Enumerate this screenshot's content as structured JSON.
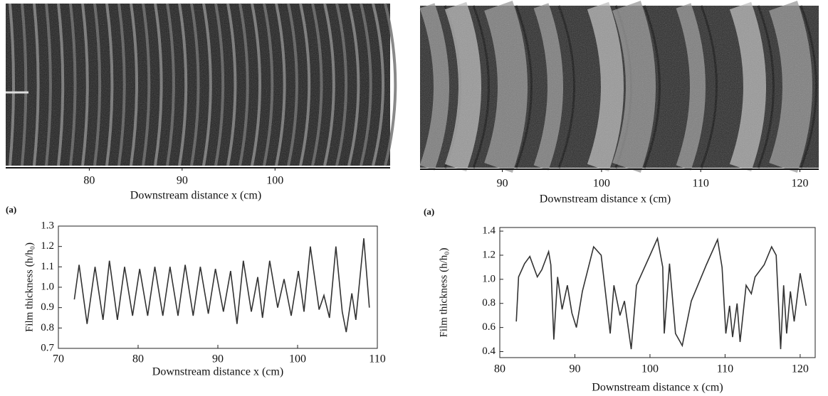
{
  "chart_data": [
    {
      "type": "line",
      "xlabel": "Downstream distance  x (cm)",
      "ylabel": "Film thickness (h/h₀)",
      "xlim": [
        70,
        110
      ],
      "xticks": [
        70,
        80,
        90,
        100,
        110
      ],
      "ylim": [
        0.7,
        1.3
      ],
      "yticks": [
        0.7,
        0.8,
        0.9,
        {
          "value": 1.0,
          "label": "1.0"
        },
        1.1,
        1.2,
        1.3
      ],
      "color": "#333333",
      "x": [
        72.0,
        72.6,
        73.6,
        74.6,
        75.6,
        76.4,
        77.4,
        78.3,
        79.3,
        80.2,
        81.2,
        82.1,
        83.1,
        84.0,
        85.0,
        85.9,
        86.9,
        87.8,
        88.8,
        89.7,
        90.7,
        91.6,
        92.4,
        93.2,
        94.2,
        95.0,
        95.6,
        96.5,
        97.5,
        98.3,
        99.2,
        100.1,
        100.8,
        101.6,
        102.7,
        103.3,
        104.0,
        104.8,
        105.6,
        106.1,
        106.8,
        107.3,
        108.3,
        109.0
      ],
      "values": [
        0.94,
        1.11,
        0.82,
        1.1,
        0.84,
        1.13,
        0.84,
        1.1,
        0.86,
        1.09,
        0.86,
        1.1,
        0.86,
        1.1,
        0.86,
        1.11,
        0.86,
        1.1,
        0.87,
        1.09,
        0.88,
        1.08,
        0.82,
        1.13,
        0.88,
        1.05,
        0.85,
        1.13,
        0.9,
        1.04,
        0.86,
        1.08,
        0.88,
        1.2,
        0.89,
        0.96,
        0.85,
        1.2,
        0.88,
        0.78,
        0.97,
        0.84,
        1.24,
        0.9
      ]
    },
    {
      "type": "line",
      "xlabel": "Downstream distance  x (cm)",
      "ylabel": "Film thickness (h/h₀)",
      "xlim": [
        80,
        122
      ],
      "xticks": [
        80,
        90,
        100,
        110,
        120
      ],
      "ylim": [
        0.35,
        1.43
      ],
      "yticks": [
        0.4,
        0.6,
        0.8,
        {
          "value": 1.0,
          "label": "1.0"
        },
        1.2,
        1.4
      ],
      "color": "#333333",
      "x": [
        82.2,
        82.5,
        83.3,
        84.0,
        85.0,
        85.6,
        86.5,
        86.8,
        87.2,
        87.7,
        88.3,
        89.0,
        89.6,
        90.2,
        91.0,
        92.5,
        93.5,
        94.7,
        95.2,
        96.0,
        96.6,
        97.5,
        98.2,
        100.0,
        101.0,
        101.7,
        101.9,
        102.6,
        103.4,
        104.3,
        105.5,
        107.5,
        109.0,
        109.6,
        110.1,
        110.6,
        111.0,
        111.6,
        112.0,
        112.8,
        113.5,
        114.0,
        115.2,
        116.2,
        116.8,
        117.4,
        117.8,
        118.2,
        118.7,
        119.2,
        120.0,
        120.8
      ],
      "values": [
        0.65,
        1.02,
        1.13,
        1.19,
        1.02,
        1.08,
        1.23,
        1.12,
        0.5,
        1.02,
        0.75,
        0.95,
        0.72,
        0.6,
        0.9,
        1.27,
        1.2,
        0.55,
        0.95,
        0.7,
        0.82,
        0.42,
        0.95,
        1.2,
        1.34,
        1.1,
        0.55,
        1.13,
        0.55,
        0.45,
        0.82,
        1.12,
        1.33,
        1.1,
        0.55,
        0.78,
        0.52,
        0.8,
        0.48,
        0.95,
        0.88,
        1.02,
        1.12,
        1.27,
        1.2,
        0.42,
        0.95,
        0.55,
        0.9,
        0.65,
        1.05,
        0.78
      ]
    }
  ],
  "photos": [
    {
      "panel_label": "(a)",
      "xlabel": "Downstream distance  x (cm)",
      "xlim": [
        71,
        112.4
      ],
      "xticks": [
        80,
        90,
        100
      ]
    },
    {
      "panel_label": "(a)",
      "xlabel": "Downstream distance  x (cm)",
      "xlim": [
        81.7,
        121.9
      ],
      "xticks": [
        90,
        100,
        110,
        120
      ]
    }
  ]
}
